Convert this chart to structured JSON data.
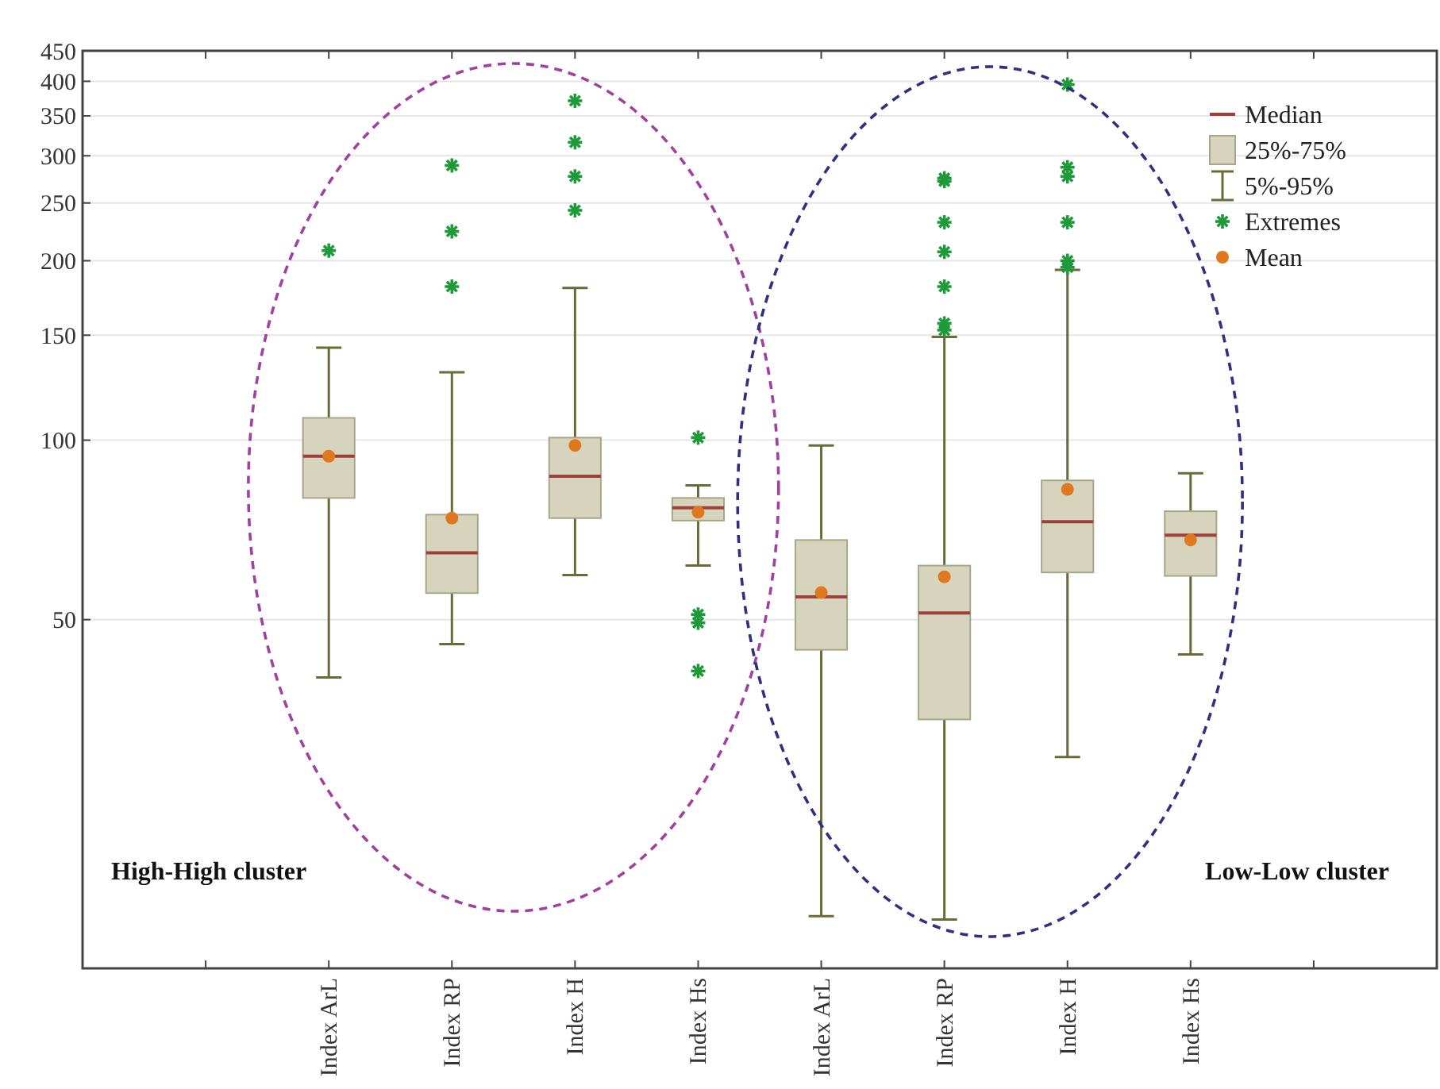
{
  "chart_data": {
    "type": "box",
    "categories": [
      null,
      "Index ArL",
      "Index RP",
      "Index H",
      "Index Hs",
      "Index ArL",
      "Index RP",
      "Index H",
      "Index Hs",
      null
    ],
    "boxes": [
      null,
      {
        "low": 40,
        "q1": 80,
        "median": 94,
        "q3": 109,
        "high": 143,
        "mean": 94,
        "outliers": [
          208
        ]
      },
      {
        "low": 45.5,
        "q1": 55.4,
        "median": 64.7,
        "q3": 75,
        "high": 130,
        "mean": 74,
        "outliers": [
          289,
          224,
          181
        ]
      },
      {
        "low": 59.4,
        "q1": 74,
        "median": 87,
        "q3": 101,
        "high": 180,
        "mean": 98,
        "outliers": [
          371,
          316,
          277,
          243
        ]
      },
      {
        "low": 61.6,
        "q1": 73.3,
        "median": 77,
        "q3": 80,
        "high": 84,
        "mean": 75.7,
        "outliers": [
          101,
          51,
          49.4,
          41
        ]
      },
      {
        "low": 15.9,
        "q1": 44.5,
        "median": 54.6,
        "q3": 68,
        "high": 98,
        "mean": 55.5
      },
      {
        "low": 15.7,
        "q1": 34,
        "median": 51.3,
        "q3": 61.6,
        "high": 149,
        "mean": 59,
        "outliers": [
          275,
          272,
          232,
          207,
          181,
          157,
          153
        ]
      },
      {
        "low": 29.4,
        "q1": 60,
        "median": 73,
        "q3": 85.6,
        "high": 193,
        "mean": 82.7,
        "outliers": [
          395,
          287,
          277,
          232,
          200,
          195
        ]
      },
      {
        "low": 43.7,
        "q1": 59.2,
        "median": 69.3,
        "q3": 76,
        "high": 88,
        "mean": 68
      },
      null
    ],
    "color": "#d6d4bd",
    "ylim": [
      13,
      450
    ],
    "yticks": [
      50,
      100,
      150,
      200,
      250,
      300,
      350,
      400,
      450
    ],
    "log": true,
    "grid": "y",
    "annotations": [
      "High-High cluster",
      "Low-Low cluster",
      "Median",
      "25%-75%",
      "5%-95%",
      "Extremes",
      "Mean"
    ]
  }
}
